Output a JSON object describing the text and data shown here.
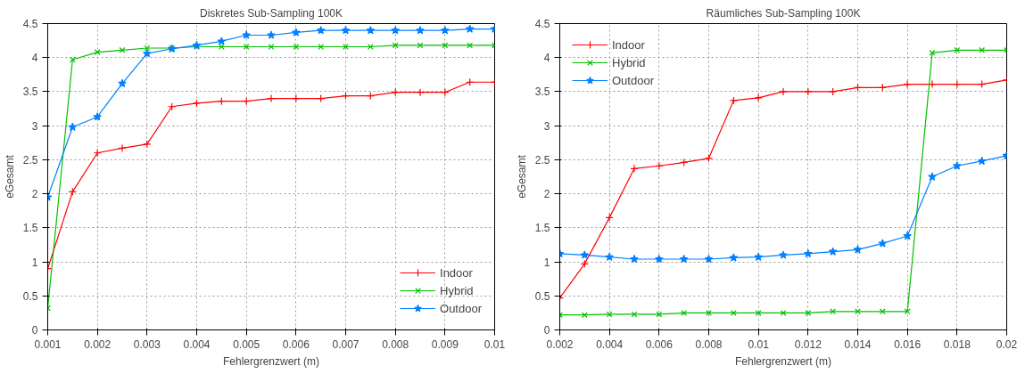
{
  "chart_data": [
    {
      "type": "line",
      "title": "Diskretes Sub-Sampling 100K",
      "xlabel": "Fehlergrenzwert (m)",
      "ylabel": "eGesamt",
      "x": [
        0.001,
        0.0015,
        0.002,
        0.0025,
        0.003,
        0.0035,
        0.004,
        0.0045,
        0.005,
        0.0055,
        0.006,
        0.0065,
        0.007,
        0.0075,
        0.008,
        0.0085,
        0.009,
        0.0095,
        0.01
      ],
      "series": [
        {
          "name": "Indoor",
          "color": "#ff0000",
          "marker": "cross",
          "values": [
            0.9,
            2.03,
            2.6,
            2.67,
            2.73,
            3.28,
            3.33,
            3.36,
            3.36,
            3.4,
            3.4,
            3.4,
            3.44,
            3.44,
            3.49,
            3.49,
            3.49,
            3.64,
            3.64
          ]
        },
        {
          "name": "Hybrid",
          "color": "#00c000",
          "marker": "x",
          "values": [
            0.32,
            3.97,
            4.08,
            4.11,
            4.14,
            4.14,
            4.16,
            4.16,
            4.16,
            4.16,
            4.16,
            4.16,
            4.16,
            4.16,
            4.18,
            4.18,
            4.18,
            4.18,
            4.18
          ]
        },
        {
          "name": "Outdoor",
          "color": "#0080ff",
          "marker": "star",
          "values": [
            1.95,
            2.98,
            3.13,
            3.62,
            4.06,
            4.13,
            4.18,
            4.24,
            4.33,
            4.33,
            4.37,
            4.4,
            4.4,
            4.4,
            4.4,
            4.4,
            4.4,
            4.42,
            4.42
          ]
        }
      ],
      "xlim": [
        0.001,
        0.01
      ],
      "xticks": [
        0.001,
        0.002,
        0.003,
        0.004,
        0.005,
        0.006,
        0.007,
        0.008,
        0.009,
        0.01
      ],
      "ylim": [
        0,
        4.5
      ],
      "yticks": [
        0,
        0.5,
        1,
        1.5,
        2,
        2.5,
        3,
        3.5,
        4,
        4.5
      ],
      "grid": true,
      "legend": "bottom right",
      "line_style": "solid"
    },
    {
      "type": "line",
      "title": "Räumliches Sub-Sampling 100K",
      "xlabel": "Fehlergrenzwert (m)",
      "ylabel": "eGesamt",
      "x": [
        0.002,
        0.003,
        0.004,
        0.005,
        0.006,
        0.007,
        0.008,
        0.009,
        0.01,
        0.011,
        0.012,
        0.013,
        0.014,
        0.015,
        0.016,
        0.017,
        0.018,
        0.019,
        0.02
      ],
      "series": [
        {
          "name": "Indoor",
          "color": "#ff0000",
          "marker": "cross",
          "values": [
            0.47,
            0.97,
            1.65,
            2.37,
            2.41,
            2.46,
            2.52,
            3.37,
            3.41,
            3.5,
            3.5,
            3.5,
            3.56,
            3.56,
            3.61,
            3.61,
            3.61,
            3.61,
            3.67
          ]
        },
        {
          "name": "Hybrid",
          "color": "#00c000",
          "marker": "x",
          "values": [
            0.22,
            0.22,
            0.23,
            0.23,
            0.23,
            0.25,
            0.25,
            0.25,
            0.25,
            0.25,
            0.25,
            0.27,
            0.27,
            0.27,
            0.27,
            4.07,
            4.11,
            4.11,
            4.11
          ]
        },
        {
          "name": "Outdoor",
          "color": "#0080ff",
          "marker": "star",
          "values": [
            1.12,
            1.1,
            1.07,
            1.04,
            1.04,
            1.04,
            1.04,
            1.06,
            1.07,
            1.1,
            1.12,
            1.15,
            1.18,
            1.27,
            1.38,
            2.25,
            2.41,
            2.48,
            2.56
          ]
        }
      ],
      "xlim": [
        0.002,
        0.02
      ],
      "xticks": [
        0.002,
        0.004,
        0.006,
        0.008,
        0.01,
        0.012,
        0.014,
        0.016,
        0.018,
        0.02
      ],
      "ylim": [
        0,
        4.5
      ],
      "yticks": [
        0,
        0.5,
        1,
        1.5,
        2,
        2.5,
        3,
        3.5,
        4,
        4.5
      ],
      "grid": true,
      "legend": "top left",
      "line_style": "solid"
    }
  ]
}
